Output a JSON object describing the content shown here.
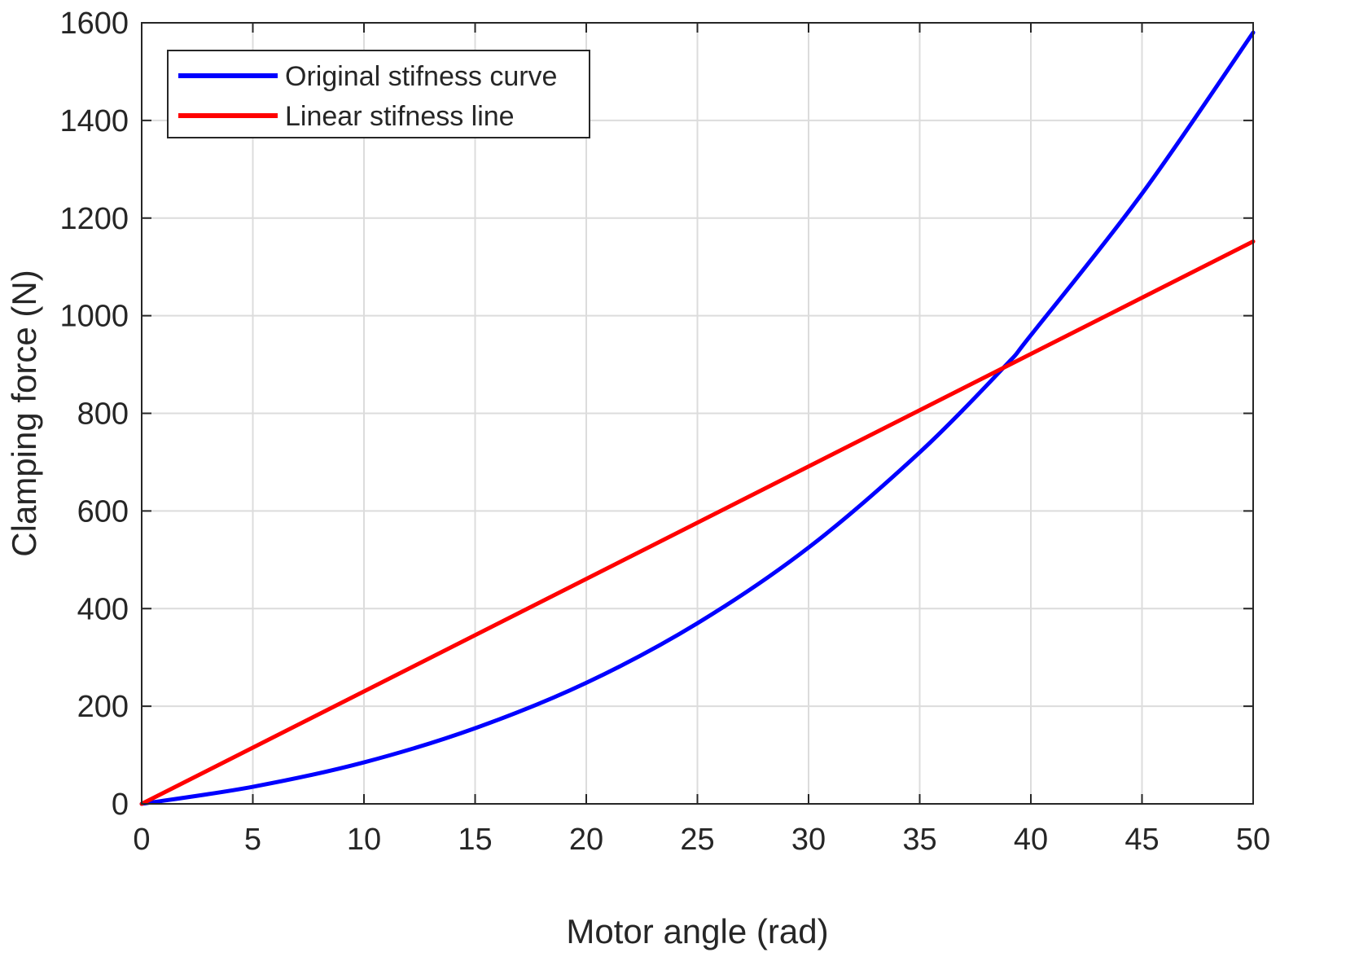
{
  "chart_data": {
    "type": "line",
    "xlabel": "Motor angle (rad)",
    "ylabel": "Clamping force (N)",
    "xlim": [
      0,
      50
    ],
    "ylim": [
      0,
      1600
    ],
    "xticks": [
      "0",
      "5",
      "10",
      "15",
      "20",
      "25",
      "30",
      "35",
      "40",
      "45",
      "50"
    ],
    "yticks": [
      "0",
      "200",
      "400",
      "600",
      "800",
      "1000",
      "1200",
      "1400",
      "1600"
    ],
    "grid": true,
    "legend_position": "top-left",
    "series": [
      {
        "name": "Original stifness curve",
        "color": "#0000ff",
        "x": [
          0,
          5,
          10,
          15,
          20,
          25,
          30,
          35,
          38.8,
          40,
          45,
          50
        ],
        "y": [
          0,
          35,
          85,
          155,
          248,
          370,
          525,
          720,
          895,
          960,
          1250,
          1580
        ]
      },
      {
        "name": "Linear stifness line",
        "color": "#ff0000",
        "x": [
          0,
          50
        ],
        "y": [
          0,
          1152
        ]
      }
    ]
  }
}
